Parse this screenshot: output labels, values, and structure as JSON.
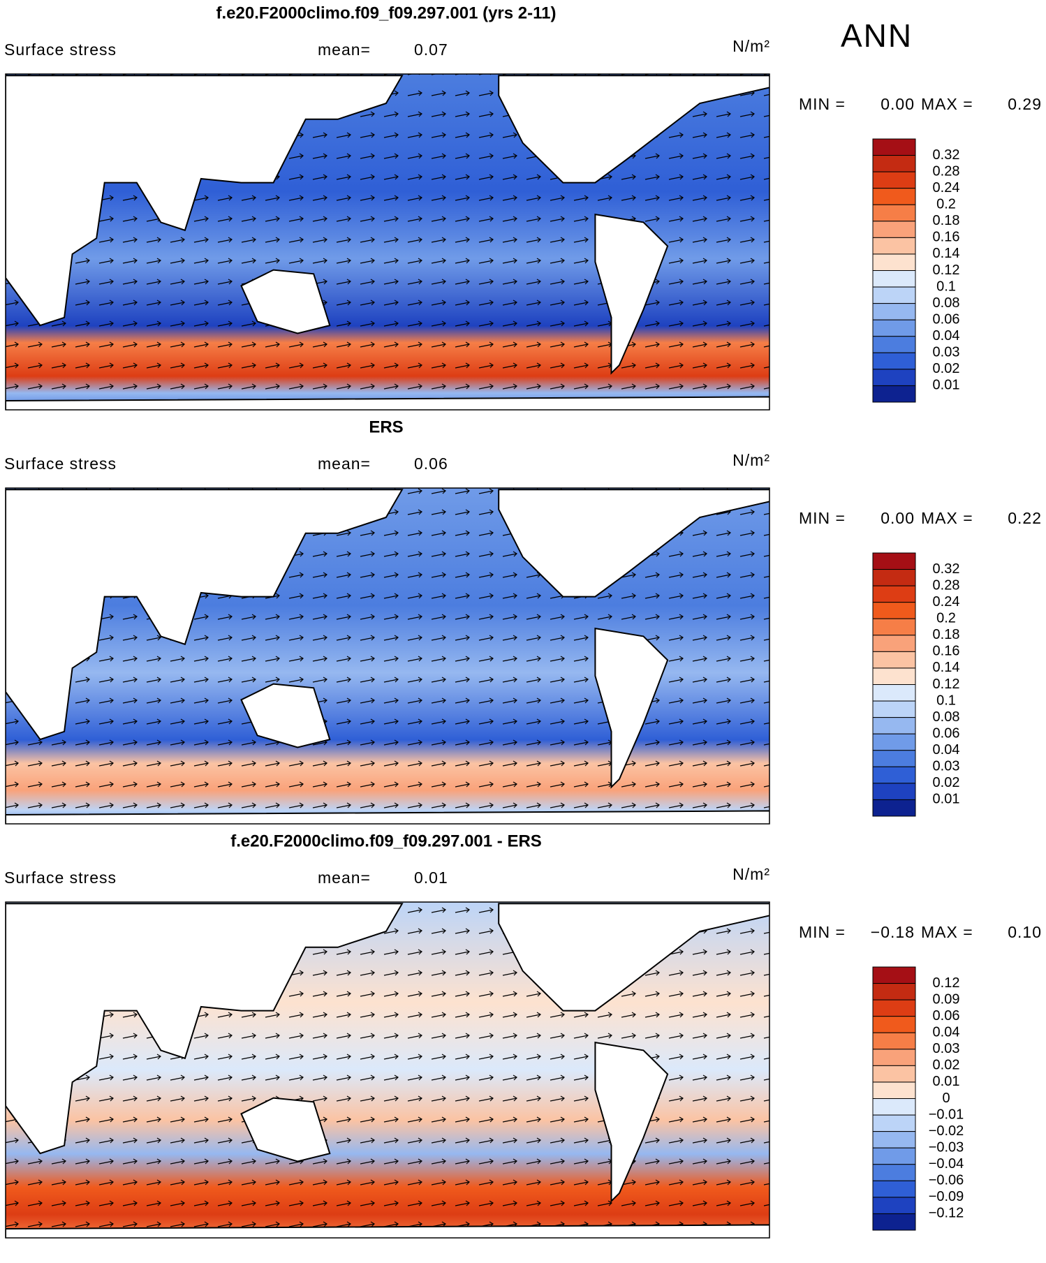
{
  "header": {
    "season": "ANN"
  },
  "colorbar_colors": [
    "#a50f15",
    "#c42b12",
    "#dd3d14",
    "#f05a1c",
    "#f67e47",
    "#f9a27a",
    "#fbc3a3",
    "#fde2cf",
    "#dbe9fb",
    "#bcd4f7",
    "#96b8f0",
    "#709be8",
    "#4c7ddf",
    "#2f5fd6",
    "#1e42c0",
    "#0d2290"
  ],
  "panels": [
    {
      "title": "f.e20.F2000climo.f09_f09.297.001 (yrs 2-11)",
      "variable": "Surface stress",
      "mean_label": "mean=",
      "mean": "0.07",
      "units": "N/m²",
      "min_label": "MIN =",
      "min": "0.00",
      "max_label": "MAX =",
      "max": "0.29",
      "levels": [
        "0.32",
        "0.28",
        "0.24",
        "0.2",
        "0.18",
        "0.16",
        "0.14",
        "0.12",
        "0.1",
        "0.08",
        "0.06",
        "0.04",
        "0.03",
        "0.02",
        "0.01"
      ]
    },
    {
      "title": "ERS",
      "variable": "Surface stress",
      "mean_label": "mean=",
      "mean": "0.06",
      "units": "N/m²",
      "min_label": "MIN =",
      "min": "0.00",
      "max_label": "MAX =",
      "max": "0.22",
      "levels": [
        "0.32",
        "0.28",
        "0.24",
        "0.2",
        "0.18",
        "0.16",
        "0.14",
        "0.12",
        "0.1",
        "0.08",
        "0.06",
        "0.04",
        "0.03",
        "0.02",
        "0.01"
      ]
    },
    {
      "title": "f.e20.F2000climo.f09_f09.297.001 - ERS",
      "variable": "Surface stress",
      "mean_label": "mean=",
      "mean": "0.01",
      "units": "N/m²",
      "min_label": "MIN =",
      "min": "−0.18",
      "max_label": "MAX =",
      "max": "0.10",
      "levels": [
        "0.12",
        "0.09",
        "0.06",
        "0.04",
        "0.03",
        "0.02",
        "0.01",
        "0",
        "−0.01",
        "−0.02",
        "−0.03",
        "−0.04",
        "−0.06",
        "−0.09",
        "−0.12"
      ]
    }
  ]
}
